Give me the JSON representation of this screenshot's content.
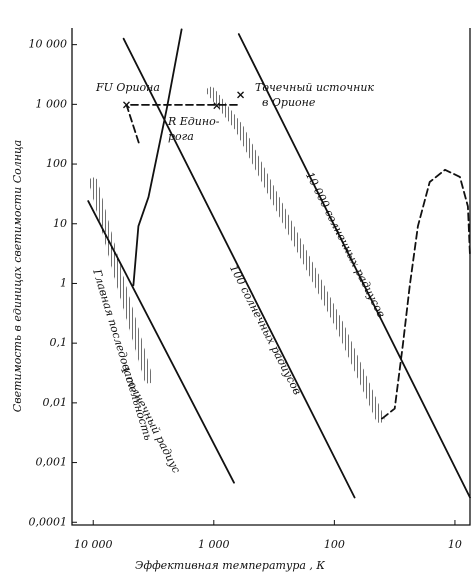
{
  "chart_data": {
    "type": "line",
    "xscale": "log",
    "yscale": "log",
    "xlabel": "Эффективная температура , К",
    "ylabel": "Светимость в единицах светимости Солнца",
    "xlim": [
      15000,
      7.5
    ],
    "ylim": [
      9e-05,
      19000
    ],
    "xticks": [
      {
        "value": 10000,
        "label": "10 000"
      },
      {
        "value": 1000,
        "label": "1 000"
      },
      100,
      10
    ],
    "yticks": [
      {
        "value": 10000,
        "label": "10 000"
      },
      {
        "value": 1000,
        "label": "1 000"
      },
      100,
      10,
      1,
      {
        "value": 0.1,
        "label": "0,1"
      },
      {
        "value": 0.01,
        "label": "0,01"
      },
      {
        "value": 0.001,
        "label": "0,001"
      },
      {
        "value": 0.0001,
        "label": "0,0001"
      }
    ],
    "grid": false,
    "color": "#111111",
    "series": [
      {
        "name": "1 солнечный радиус",
        "style": "solid",
        "x": [
          11000,
          680
        ],
        "values": [
          24,
          0.00046
        ]
      },
      {
        "name": "100 солнечных радиусов",
        "style": "solid",
        "x": [
          5600,
          68
        ],
        "values": [
          12600,
          0.00026
        ]
      },
      {
        "name": "10 000 солнечных радиусов",
        "style": "solid",
        "x": [
          620,
          7.5
        ],
        "values": [
          15000,
          0.00026
        ]
      },
      {
        "name": "Главная последовательность",
        "style": "hatched",
        "x": [
          10000,
          6200,
          3480
        ],
        "values": [
          50,
          1.36,
          0.025
        ]
      },
      {
        "style": "hatched",
        "x": [
          1060,
          620,
          237,
          91,
          42
        ],
        "values": [
          1660,
          410,
          9,
          0.2,
          0.0055
        ]
      },
      {
        "style": "solid",
        "x": [
          4640,
          4220,
          3480,
          2450,
          1850
        ],
        "values": [
          0.93,
          9.1,
          28,
          870,
          18000
        ]
      },
      {
        "style": "dashed",
        "x": [
          4200,
          5300,
          620
        ],
        "values": [
          230,
          980,
          980
        ]
      },
      {
        "style": "dashed",
        "x": [
          40,
          31.6,
          27,
          23.7,
          20.3,
          16.2,
          12.1,
          9.1,
          7.8,
          7.5
        ],
        "values": [
          0.0055,
          0.008,
          0.095,
          0.93,
          9.1,
          50,
          80,
          61,
          19.5,
          2.9
        ]
      }
    ],
    "markers": {
      "x": [
        5300,
        945,
        600
      ],
      "values": [
        980,
        950,
        1440
      ]
    },
    "annotations": [
      "FU Ориона",
      "R Едино-",
      "рога",
      "Точечный источник",
      "в Орионе"
    ]
  }
}
